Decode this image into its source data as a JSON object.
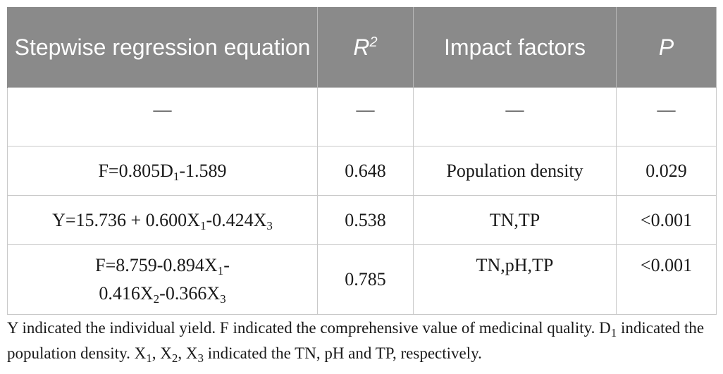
{
  "header": {
    "equation": "Stepwise regression equation",
    "r": "R",
    "r_sup": "2",
    "factors": "Impact factors",
    "p": "P"
  },
  "rows": [
    {
      "eq": "—",
      "r2": "—",
      "factors": "—",
      "p": "—"
    },
    {
      "eq_a": "F=0.805D",
      "eq_a_sub": "1",
      "eq_b": "-1.589",
      "r2": "0.648",
      "factors": "Population density",
      "p": "0.029"
    },
    {
      "eq_a": "Y=15.736 + 0.600X",
      "eq_a_sub": "1",
      "eq_b": "-0.424X",
      "eq_b_sub": "3",
      "r2": "0.538",
      "factors": "TN,TP",
      "p": "<0.001"
    },
    {
      "eq_a": "F=8.759-0.894X",
      "eq_a_sub": "1",
      "eq_b": "-",
      "eq_c": "0.416X",
      "eq_c_sub": "2",
      "eq_d": "-0.366X",
      "eq_d_sub": "3",
      "r2": "0.785",
      "factors": "TN,pH,TP",
      "p": "<0.001"
    }
  ],
  "footnote": {
    "t1": "Y indicated the individual yield. F indicated the comprehensive value of medicinal quality. D",
    "t1_sub": "1",
    "t2": " indicated the population density. X",
    "t2_sub": "1",
    "t3": ", X",
    "t3_sub": "2",
    "t4": ", X",
    "t4_sub": "3",
    "t5": " indicated the TN, pH and TP, respectively."
  }
}
